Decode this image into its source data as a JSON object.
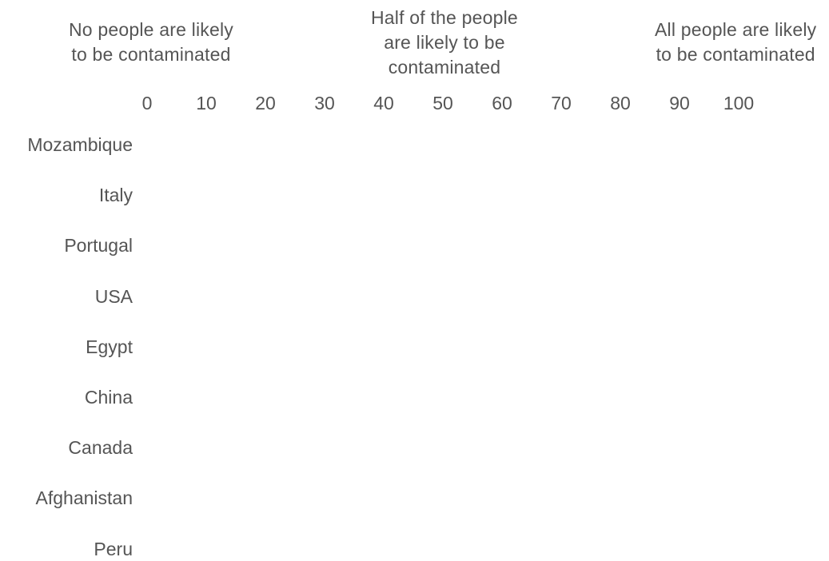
{
  "chart_data": {
    "type": "scatter",
    "xlim": [
      0,
      100
    ],
    "x_ticks": [
      0,
      10,
      20,
      30,
      40,
      50,
      60,
      70,
      80,
      90,
      100
    ],
    "categories": [
      "Mozambique",
      "Italy",
      "Portugal",
      "USA",
      "Egypt",
      "China",
      "Canada",
      "Afghanistan",
      "Peru"
    ],
    "series": [],
    "annotations": [
      {
        "x": 0,
        "lines": [
          "No people are likely",
          "to be contaminated"
        ]
      },
      {
        "x": 50,
        "lines": [
          "Half of the people",
          "are likely to be",
          "contaminated"
        ]
      },
      {
        "x": 100,
        "lines": [
          "All people are likely",
          "to be contaminated"
        ]
      }
    ],
    "grid": false,
    "legend": "none",
    "colors": {
      "text": "#555555",
      "background": "#ffffff"
    }
  }
}
